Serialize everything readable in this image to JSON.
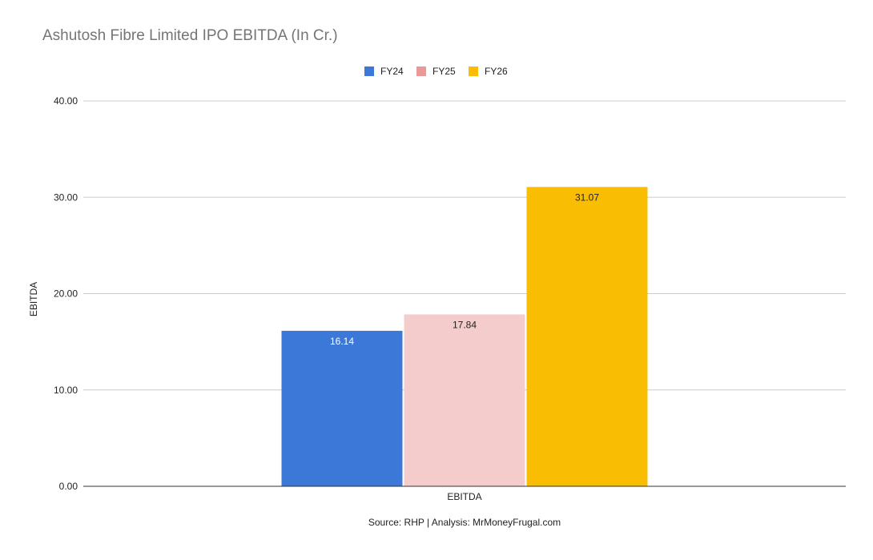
{
  "chart_data": {
    "type": "bar",
    "title": "Ashutosh Fibre Limited IPO EBITDA (In Cr.)",
    "categories": [
      "EBITDA"
    ],
    "series": [
      {
        "name": "FY24",
        "values": [
          16.14
        ],
        "color": "#3c78d8",
        "label": "16.14",
        "label_color": "#ffffff"
      },
      {
        "name": "FY25",
        "values": [
          17.84
        ],
        "color": "#f4cccc",
        "label": "17.84",
        "label_color": "#222222"
      },
      {
        "name": "FY26",
        "values": [
          31.07
        ],
        "color": "#f9bd04",
        "label": "31.07",
        "label_color": "#222222"
      }
    ],
    "legend_swatch_colors": [
      "#3c78d8",
      "#ea9999",
      "#f9bd04"
    ],
    "xlabel": "EBITDA",
    "ylabel": "EBITDA",
    "ylim": [
      0,
      40
    ],
    "yticks": [
      0,
      10,
      20,
      30,
      40
    ],
    "ytick_labels": [
      "0.00",
      "10.00",
      "20.00",
      "30.00",
      "40.00"
    ],
    "grid": true,
    "legend_position": "top-center",
    "footnote": "Source: RHP | Analysis: MrMoneyFrugal.com"
  }
}
